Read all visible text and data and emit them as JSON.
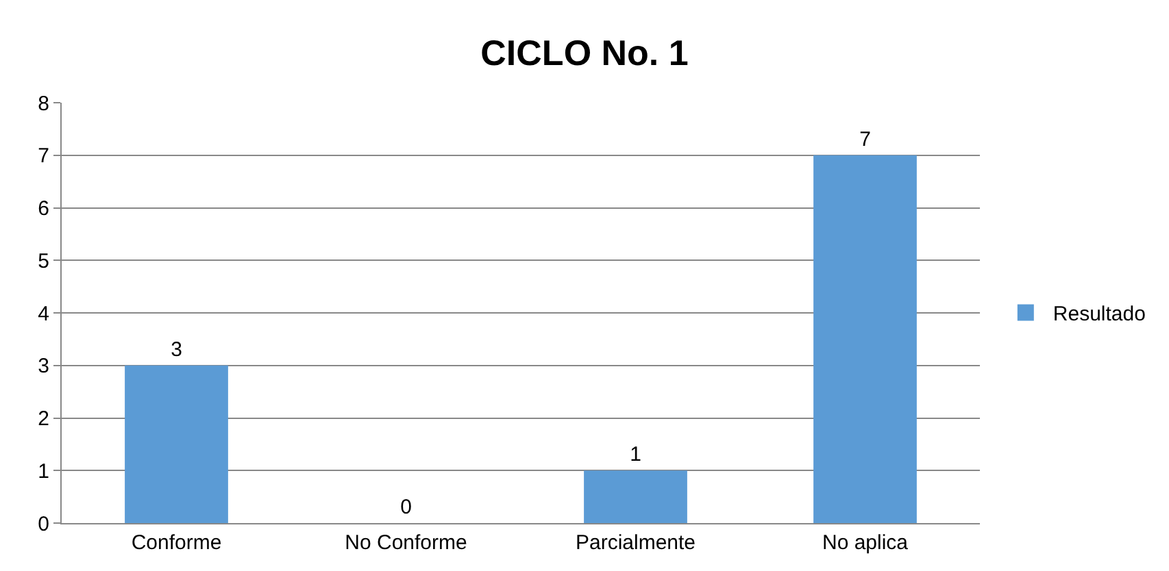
{
  "chart_data": {
    "type": "bar",
    "title": "CICLO No. 1",
    "categories": [
      "Conforme",
      "No Conforme",
      "Parcialmente",
      "No aplica"
    ],
    "series": [
      {
        "name": "Resultado",
        "color": "#5b9bd5",
        "values": [
          3,
          0,
          1,
          7
        ]
      }
    ],
    "ylim": [
      0,
      8
    ],
    "yticks": [
      0,
      1,
      2,
      3,
      4,
      5,
      6,
      7,
      8
    ],
    "grid": "y",
    "legend": "right",
    "data_labels": true
  }
}
